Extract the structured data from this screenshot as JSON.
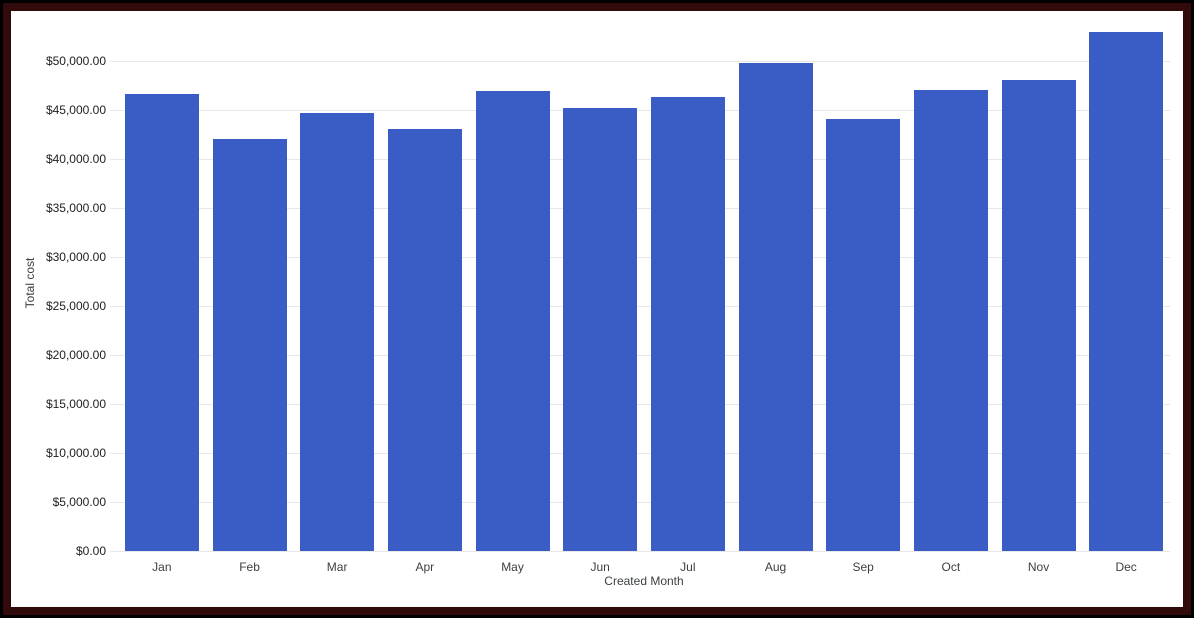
{
  "frame": {
    "outer_color": "#000000",
    "inner_color": "#310b0b",
    "card_color": "#ffffff"
  },
  "chart_data": {
    "type": "bar",
    "title": "",
    "categories": [
      "Jan",
      "Feb",
      "Mar",
      "Apr",
      "May",
      "Jun",
      "Jul",
      "Aug",
      "Sep",
      "Oct",
      "Nov",
      "Dec"
    ],
    "values": [
      46600,
      42050,
      44650,
      43050,
      46900,
      45200,
      46300,
      49800,
      44050,
      47050,
      48100,
      52950
    ],
    "xlabel": "Created Month",
    "ylabel": "Total cost",
    "ylim": [
      0,
      55000
    ],
    "ytick_step": 5000,
    "ytick_labels": [
      "$0.00",
      "$5,000.00",
      "$10,000.00",
      "$15,000.00",
      "$20,000.00",
      "$25,000.00",
      "$30,000.00",
      "$35,000.00",
      "$40,000.00",
      "$45,000.00",
      "$50,000.00"
    ],
    "bar_color": "#3a5cc5",
    "gridline_color": "#e8e8e8",
    "axis_text_color": "#3c4043",
    "grid": true,
    "legend": "none"
  }
}
